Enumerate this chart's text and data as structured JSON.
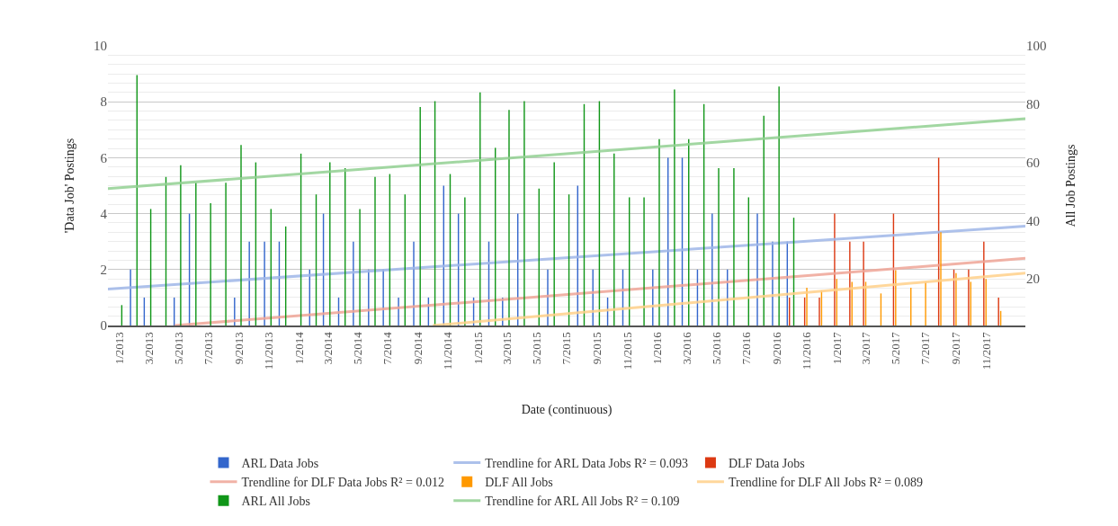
{
  "chart_data": {
    "type": "bar",
    "xlabel": "Date (continuous)",
    "ylabel": "'Data Job' Postings",
    "y2label": "All Job Postings",
    "x": [
      "2013-01",
      "2013-02",
      "2013-03",
      "2013-04",
      "2013-05",
      "2013-06",
      "2013-07",
      "2013-08",
      "2013-09",
      "2013-10",
      "2013-11",
      "2013-12",
      "2014-01",
      "2014-02",
      "2014-03",
      "2014-04",
      "2014-05",
      "2014-06",
      "2014-07",
      "2014-08",
      "2014-09",
      "2014-10",
      "2014-11",
      "2014-12",
      "2015-01",
      "2015-02",
      "2015-03",
      "2015-04",
      "2015-05",
      "2015-06",
      "2015-07",
      "2015-08",
      "2015-09",
      "2015-10",
      "2015-11",
      "2015-12",
      "2016-01",
      "2016-02",
      "2016-03",
      "2016-04",
      "2016-05",
      "2016-06",
      "2016-07",
      "2016-08",
      "2016-09",
      "2016-10",
      "2016-11",
      "2016-12",
      "2017-01",
      "2017-02",
      "2017-03",
      "2017-04",
      "2017-05",
      "2017-06",
      "2017-07",
      "2017-08",
      "2017-09",
      "2017-10",
      "2017-11",
      "2017-12"
    ],
    "series": [
      {
        "name": "ARL Data Jobs",
        "color": "#3366cc",
        "values": [
          null,
          2,
          1,
          null,
          1,
          4,
          null,
          null,
          1,
          3,
          3,
          3,
          null,
          2,
          4,
          1,
          3,
          2,
          2,
          1,
          3,
          1,
          5,
          4,
          1,
          3,
          1,
          4,
          null,
          2,
          null,
          5,
          2,
          1,
          2,
          null,
          2,
          6,
          6,
          2,
          4,
          2,
          null,
          4,
          3,
          3,
          null,
          null,
          null,
          null,
          null,
          null,
          null,
          null,
          null,
          null,
          null,
          null,
          null,
          null
        ]
      },
      {
        "name": "Trendline for ARL Data Jobs R² = 0.093",
        "type": "line",
        "color": "#9fb6e8",
        "x": [
          "2012-12-08",
          "2018-01-20"
        ],
        "values": [
          1.3,
          3.55
        ]
      },
      {
        "name": "DLF Data Jobs",
        "color": "#dc3912",
        "values": [
          null,
          null,
          null,
          null,
          null,
          null,
          null,
          null,
          null,
          null,
          null,
          null,
          null,
          null,
          null,
          null,
          null,
          null,
          null,
          null,
          null,
          null,
          null,
          null,
          null,
          null,
          null,
          null,
          null,
          null,
          null,
          null,
          null,
          null,
          null,
          null,
          null,
          null,
          null,
          null,
          null,
          null,
          null,
          null,
          null,
          1,
          1,
          1,
          4,
          3,
          3,
          null,
          4,
          null,
          null,
          6,
          2,
          2,
          3,
          1
        ]
      },
      {
        "name": "Trendline for DLF Data Jobs R² = 0.012",
        "type": "line",
        "color": "#eea596",
        "x": [
          "2013-04-23",
          "2018-01-20"
        ],
        "values": [
          0,
          2.4
        ]
      },
      {
        "name": "DLF All Jobs",
        "color": "#ff9900",
        "axis": "y2",
        "values": [
          null,
          null,
          null,
          null,
          null,
          null,
          null,
          null,
          null,
          null,
          null,
          null,
          null,
          null,
          null,
          null,
          null,
          null,
          null,
          null,
          null,
          null,
          null,
          null,
          null,
          null,
          null,
          null,
          null,
          null,
          null,
          null,
          null,
          null,
          null,
          null,
          null,
          null,
          null,
          null,
          null,
          null,
          null,
          null,
          null,
          null,
          17,
          16,
          20,
          19,
          19,
          15,
          23,
          17,
          19,
          36,
          22,
          19,
          20,
          9
        ]
      },
      {
        "name": "Trendline for DLF All Jobs R² = 0.089",
        "type": "line",
        "color": "#ffd08a",
        "axis": "y2",
        "x": [
          "2014-10-01",
          "2018-01-20"
        ],
        "values": [
          4,
          22
        ]
      },
      {
        "name": "ARL All Jobs",
        "color": "#109618",
        "axis": "y2",
        "values": [
          11,
          90,
          44,
          55,
          59,
          53,
          46,
          53,
          66,
          60,
          44,
          38,
          63,
          49,
          60,
          58,
          44,
          55,
          56,
          49,
          79,
          81,
          56,
          48,
          84,
          65,
          78,
          81,
          51,
          60,
          49,
          80,
          81,
          63,
          48,
          48,
          68,
          85,
          68,
          80,
          58,
          58,
          48,
          76,
          86,
          41,
          null,
          null,
          null,
          null,
          null,
          null,
          null,
          null,
          null,
          null,
          null,
          null,
          null,
          null
        ]
      },
      {
        "name": "Trendline for ARL All Jobs R² = 0.109",
        "type": "line",
        "color": "#92d092",
        "axis": "y2",
        "x": [
          "2012-12-08",
          "2018-01-20"
        ],
        "values": [
          51,
          75
        ]
      }
    ],
    "xlim": [
      "2012-12-08",
      "2018-01-20"
    ],
    "xticks": [
      {
        "value": "2013-01",
        "label": "1/2013"
      },
      {
        "value": "2013-03",
        "label": "3/2013"
      },
      {
        "value": "2013-05",
        "label": "5/2013"
      },
      {
        "value": "2013-07",
        "label": "7/2013"
      },
      {
        "value": "2013-09",
        "label": "9/2013"
      },
      {
        "value": "2013-11",
        "label": "11/2013"
      },
      {
        "value": "2014-01",
        "label": "1/2014"
      },
      {
        "value": "2014-03",
        "label": "3/2014"
      },
      {
        "value": "2014-05",
        "label": "5/2014"
      },
      {
        "value": "2014-07",
        "label": "7/2014"
      },
      {
        "value": "2014-09",
        "label": "9/2014"
      },
      {
        "value": "2014-11",
        "label": "11/2014"
      },
      {
        "value": "2015-01",
        "label": "1/2015"
      },
      {
        "value": "2015-03",
        "label": "3/2015"
      },
      {
        "value": "2015-05",
        "label": "5/2015"
      },
      {
        "value": "2015-07",
        "label": "7/2015"
      },
      {
        "value": "2015-09",
        "label": "9/2015"
      },
      {
        "value": "2015-11",
        "label": "11/2015"
      },
      {
        "value": "2016-01",
        "label": "1/2016"
      },
      {
        "value": "2016-03",
        "label": "3/2016"
      },
      {
        "value": "2016-05",
        "label": "5/2016"
      },
      {
        "value": "2016-07",
        "label": "7/2016"
      },
      {
        "value": "2016-09",
        "label": "9/2016"
      },
      {
        "value": "2016-11",
        "label": "11/2016"
      },
      {
        "value": "2017-01",
        "label": "1/2017"
      },
      {
        "value": "2017-03",
        "label": "3/2017"
      },
      {
        "value": "2017-05",
        "label": "5/2017"
      },
      {
        "value": "2017-07",
        "label": "7/2017"
      },
      {
        "value": "2017-09",
        "label": "9/2017"
      },
      {
        "value": "2017-11",
        "label": "11/2017"
      }
    ],
    "ylim": [
      0,
      10
    ],
    "yticks": [
      0,
      2,
      4,
      6,
      8,
      10
    ],
    "y2lim": [
      4,
      100
    ],
    "y2ticks": [
      20,
      40,
      60,
      80,
      100
    ],
    "grid": "y",
    "legend": "bottom",
    "marker": "none",
    "line_style": "solid"
  }
}
